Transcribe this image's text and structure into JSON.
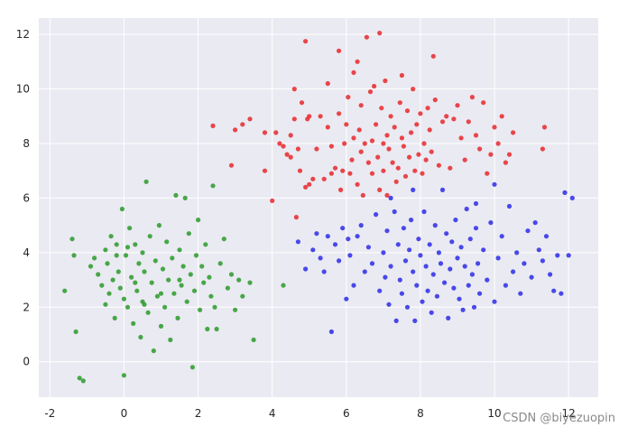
{
  "chart_data": {
    "type": "scatter",
    "xlim": [
      -2.3,
      12.8
    ],
    "ylim": [
      -1.3,
      12.6
    ],
    "xticks": [
      -2,
      0,
      2,
      4,
      6,
      8,
      10,
      12
    ],
    "yticks": [
      0,
      2,
      4,
      6,
      8,
      10,
      12
    ],
    "grid": true,
    "plot_background": "#EAEAF2",
    "series": [
      {
        "color": "#E8282B",
        "points": [
          [
            2.4,
            8.65
          ],
          [
            2.9,
            7.2
          ],
          [
            3.0,
            8.5
          ],
          [
            3.2,
            8.7
          ],
          [
            3.4,
            8.9
          ],
          [
            3.8,
            8.4
          ],
          [
            3.8,
            7.0
          ],
          [
            4.0,
            5.9
          ],
          [
            4.1,
            8.4
          ],
          [
            4.2,
            8.0
          ],
          [
            4.3,
            7.9
          ],
          [
            4.4,
            7.6
          ],
          [
            4.5,
            7.5
          ],
          [
            4.5,
            8.3
          ],
          [
            4.6,
            8.9
          ],
          [
            4.6,
            10.0
          ],
          [
            4.65,
            5.3
          ],
          [
            4.7,
            7.8
          ],
          [
            4.75,
            7.0
          ],
          [
            4.8,
            9.5
          ],
          [
            4.9,
            6.4
          ],
          [
            4.9,
            11.75
          ],
          [
            4.95,
            8.9
          ],
          [
            5.0,
            6.5
          ],
          [
            5.0,
            9.0
          ],
          [
            5.1,
            6.7
          ],
          [
            5.2,
            7.8
          ],
          [
            5.3,
            9.0
          ],
          [
            5.4,
            6.7
          ],
          [
            5.5,
            10.2
          ],
          [
            5.5,
            8.6
          ],
          [
            5.6,
            7.9
          ],
          [
            5.6,
            6.9
          ],
          [
            5.7,
            7.1
          ],
          [
            5.8,
            9.1
          ],
          [
            5.8,
            11.4
          ],
          [
            5.85,
            6.3
          ],
          [
            5.9,
            7.0
          ],
          [
            5.95,
            8.0
          ],
          [
            6.0,
            8.7
          ],
          [
            6.05,
            9.7
          ],
          [
            6.1,
            6.9
          ],
          [
            6.15,
            7.4
          ],
          [
            6.2,
            8.2
          ],
          [
            6.2,
            10.6
          ],
          [
            6.3,
            6.5
          ],
          [
            6.3,
            11.0
          ],
          [
            6.35,
            8.5
          ],
          [
            6.4,
            9.4
          ],
          [
            6.4,
            7.7
          ],
          [
            6.45,
            6.1
          ],
          [
            6.5,
            8.0
          ],
          [
            6.55,
            11.9
          ],
          [
            6.6,
            7.3
          ],
          [
            6.65,
            9.9
          ],
          [
            6.7,
            8.1
          ],
          [
            6.7,
            6.9
          ],
          [
            6.75,
            10.1
          ],
          [
            6.8,
            8.7
          ],
          [
            6.85,
            7.5
          ],
          [
            6.9,
            12.05
          ],
          [
            6.9,
            6.3
          ],
          [
            6.95,
            9.3
          ],
          [
            7.0,
            8.0
          ],
          [
            7.0,
            7.0
          ],
          [
            7.05,
            10.3
          ],
          [
            7.1,
            8.3
          ],
          [
            7.1,
            6.1
          ],
          [
            7.15,
            7.8
          ],
          [
            7.2,
            9.0
          ],
          [
            7.25,
            7.3
          ],
          [
            7.3,
            8.6
          ],
          [
            7.35,
            6.6
          ],
          [
            7.4,
            7.1
          ],
          [
            7.45,
            9.5
          ],
          [
            7.5,
            8.2
          ],
          [
            7.5,
            10.5
          ],
          [
            7.55,
            7.9
          ],
          [
            7.6,
            6.8
          ],
          [
            7.65,
            9.2
          ],
          [
            7.7,
            7.5
          ],
          [
            7.75,
            8.4
          ],
          [
            7.8,
            10.0
          ],
          [
            7.85,
            7.0
          ],
          [
            7.9,
            8.7
          ],
          [
            7.95,
            7.6
          ],
          [
            8.0,
            9.1
          ],
          [
            8.05,
            6.9
          ],
          [
            8.1,
            8.0
          ],
          [
            8.15,
            7.4
          ],
          [
            8.2,
            9.3
          ],
          [
            8.25,
            8.5
          ],
          [
            8.3,
            7.7
          ],
          [
            8.35,
            11.2
          ],
          [
            8.4,
            9.6
          ],
          [
            8.5,
            7.2
          ],
          [
            8.6,
            8.8
          ],
          [
            8.7,
            9.0
          ],
          [
            8.8,
            7.1
          ],
          [
            8.9,
            8.9
          ],
          [
            9.0,
            9.4
          ],
          [
            9.1,
            8.2
          ],
          [
            9.2,
            7.4
          ],
          [
            9.3,
            8.8
          ],
          [
            9.4,
            9.7
          ],
          [
            9.5,
            8.3
          ],
          [
            9.6,
            7.8
          ],
          [
            9.7,
            9.5
          ],
          [
            9.8,
            6.9
          ],
          [
            9.9,
            7.6
          ],
          [
            10.0,
            8.6
          ],
          [
            10.1,
            8.0
          ],
          [
            10.2,
            9.0
          ],
          [
            10.3,
            7.3
          ],
          [
            10.4,
            7.6
          ],
          [
            10.5,
            8.4
          ],
          [
            11.3,
            7.8
          ],
          [
            11.35,
            8.6
          ]
        ]
      },
      {
        "color": "#2B2BE8",
        "points": [
          [
            4.7,
            4.4
          ],
          [
            4.9,
            3.4
          ],
          [
            5.1,
            4.1
          ],
          [
            5.2,
            4.7
          ],
          [
            5.3,
            3.8
          ],
          [
            5.4,
            3.3
          ],
          [
            5.5,
            4.6
          ],
          [
            5.6,
            1.1
          ],
          [
            5.7,
            4.3
          ],
          [
            5.8,
            3.7
          ],
          [
            5.9,
            4.9
          ],
          [
            6.0,
            2.3
          ],
          [
            6.05,
            4.5
          ],
          [
            6.1,
            3.9
          ],
          [
            6.2,
            2.8
          ],
          [
            6.3,
            4.6
          ],
          [
            6.4,
            5.0
          ],
          [
            6.5,
            3.3
          ],
          [
            6.6,
            4.2
          ],
          [
            6.7,
            3.6
          ],
          [
            6.8,
            5.4
          ],
          [
            6.9,
            2.6
          ],
          [
            7.0,
            4.0
          ],
          [
            7.05,
            3.1
          ],
          [
            7.1,
            4.8
          ],
          [
            7.15,
            2.1
          ],
          [
            7.2,
            3.5
          ],
          [
            7.3,
            5.5
          ],
          [
            7.35,
            1.5
          ],
          [
            7.4,
            4.3
          ],
          [
            7.45,
            3.0
          ],
          [
            7.5,
            2.5
          ],
          [
            7.55,
            4.9
          ],
          [
            7.6,
            3.7
          ],
          [
            7.65,
            2.0
          ],
          [
            7.7,
            4.1
          ],
          [
            7.75,
            5.2
          ],
          [
            7.8,
            3.3
          ],
          [
            7.85,
            1.5
          ],
          [
            7.9,
            2.8
          ],
          [
            7.95,
            4.5
          ],
          [
            8.0,
            3.9
          ],
          [
            8.05,
            2.2
          ],
          [
            8.1,
            5.5
          ],
          [
            8.15,
            3.5
          ],
          [
            8.2,
            2.6
          ],
          [
            8.25,
            4.3
          ],
          [
            8.3,
            1.8
          ],
          [
            8.35,
            3.2
          ],
          [
            8.4,
            5.0
          ],
          [
            8.45,
            2.4
          ],
          [
            8.5,
            4.0
          ],
          [
            8.55,
            3.6
          ],
          [
            8.6,
            6.3
          ],
          [
            8.65,
            2.9
          ],
          [
            8.7,
            4.7
          ],
          [
            8.75,
            1.6
          ],
          [
            8.8,
            3.4
          ],
          [
            8.85,
            4.4
          ],
          [
            8.9,
            2.7
          ],
          [
            8.95,
            5.2
          ],
          [
            9.0,
            3.8
          ],
          [
            9.05,
            2.3
          ],
          [
            9.1,
            4.2
          ],
          [
            9.15,
            1.9
          ],
          [
            9.2,
            3.5
          ],
          [
            9.25,
            5.6
          ],
          [
            9.3,
            2.8
          ],
          [
            9.35,
            4.5
          ],
          [
            9.4,
            3.2
          ],
          [
            9.45,
            2.0
          ],
          [
            9.5,
            4.9
          ],
          [
            9.55,
            3.6
          ],
          [
            9.6,
            2.5
          ],
          [
            9.7,
            4.1
          ],
          [
            9.8,
            3.0
          ],
          [
            9.9,
            5.1
          ],
          [
            10.0,
            2.2
          ],
          [
            10.0,
            6.5
          ],
          [
            10.1,
            3.8
          ],
          [
            10.2,
            4.6
          ],
          [
            10.3,
            2.8
          ],
          [
            10.4,
            5.7
          ],
          [
            10.5,
            3.3
          ],
          [
            10.6,
            4.0
          ],
          [
            10.7,
            2.5
          ],
          [
            10.8,
            3.6
          ],
          [
            10.9,
            4.8
          ],
          [
            11.0,
            3.1
          ],
          [
            11.1,
            5.1
          ],
          [
            11.2,
            4.1
          ],
          [
            11.3,
            3.7
          ],
          [
            11.4,
            4.6
          ],
          [
            11.5,
            3.2
          ],
          [
            11.6,
            2.6
          ],
          [
            11.7,
            3.9
          ],
          [
            11.8,
            2.5
          ],
          [
            11.9,
            6.2
          ],
          [
            12.0,
            3.9
          ],
          [
            12.1,
            6.0
          ],
          [
            7.2,
            6.0
          ],
          [
            7.8,
            6.3
          ],
          [
            9.5,
            5.8
          ]
        ]
      },
      {
        "color": "#2A9A2A",
        "points": [
          [
            -1.6,
            2.6
          ],
          [
            -1.4,
            4.5
          ],
          [
            -1.35,
            3.9
          ],
          [
            -1.3,
            1.1
          ],
          [
            -1.2,
            -0.6
          ],
          [
            -1.1,
            -0.7
          ],
          [
            -0.9,
            3.5
          ],
          [
            -0.8,
            3.8
          ],
          [
            -0.7,
            3.2
          ],
          [
            -0.6,
            2.8
          ],
          [
            -0.5,
            4.1
          ],
          [
            -0.5,
            2.1
          ],
          [
            -0.45,
            3.6
          ],
          [
            -0.4,
            2.5
          ],
          [
            -0.35,
            4.6
          ],
          [
            -0.3,
            3.0
          ],
          [
            -0.25,
            1.6
          ],
          [
            -0.2,
            4.3
          ],
          [
            -0.15,
            3.3
          ],
          [
            -0.1,
            2.7
          ],
          [
            -0.05,
            5.6
          ],
          [
            0.0,
            2.3
          ],
          [
            0.0,
            -0.5
          ],
          [
            0.05,
            3.9
          ],
          [
            0.1,
            2.0
          ],
          [
            0.15,
            4.9
          ],
          [
            0.2,
            3.1
          ],
          [
            0.25,
            1.4
          ],
          [
            0.3,
            4.3
          ],
          [
            0.35,
            2.6
          ],
          [
            0.4,
            3.6
          ],
          [
            0.45,
            0.9
          ],
          [
            0.5,
            4.0
          ],
          [
            0.5,
            2.2
          ],
          [
            0.55,
            3.3
          ],
          [
            0.6,
            6.6
          ],
          [
            0.65,
            1.8
          ],
          [
            0.7,
            4.6
          ],
          [
            0.75,
            2.9
          ],
          [
            0.8,
            0.4
          ],
          [
            0.85,
            3.7
          ],
          [
            0.9,
            2.4
          ],
          [
            0.95,
            5.0
          ],
          [
            1.0,
            1.3
          ],
          [
            1.05,
            3.4
          ],
          [
            1.1,
            2.0
          ],
          [
            1.15,
            4.4
          ],
          [
            1.2,
            3.0
          ],
          [
            1.25,
            0.8
          ],
          [
            1.3,
            3.8
          ],
          [
            1.35,
            2.5
          ],
          [
            1.4,
            6.1
          ],
          [
            1.45,
            1.6
          ],
          [
            1.5,
            4.1
          ],
          [
            1.55,
            2.8
          ],
          [
            1.6,
            3.5
          ],
          [
            1.65,
            6.0
          ],
          [
            1.7,
            2.2
          ],
          [
            1.75,
            4.7
          ],
          [
            1.8,
            3.2
          ],
          [
            1.85,
            -0.2
          ],
          [
            1.9,
            2.6
          ],
          [
            1.95,
            3.9
          ],
          [
            2.0,
            5.2
          ],
          [
            2.05,
            1.9
          ],
          [
            2.1,
            3.5
          ],
          [
            2.15,
            2.9
          ],
          [
            2.2,
            4.3
          ],
          [
            2.25,
            1.2
          ],
          [
            2.3,
            3.1
          ],
          [
            2.35,
            2.4
          ],
          [
            2.4,
            6.45
          ],
          [
            2.45,
            2.0
          ],
          [
            2.5,
            1.2
          ],
          [
            2.6,
            3.6
          ],
          [
            2.7,
            4.5
          ],
          [
            2.8,
            2.7
          ],
          [
            2.9,
            3.2
          ],
          [
            3.0,
            1.9
          ],
          [
            3.1,
            3.0
          ],
          [
            3.2,
            2.4
          ],
          [
            3.4,
            2.9
          ],
          [
            3.5,
            0.8
          ],
          [
            4.3,
            2.8
          ],
          [
            0.1,
            4.2
          ],
          [
            0.55,
            2.1
          ],
          [
            1.0,
            2.5
          ],
          [
            1.5,
            3.0
          ],
          [
            0.3,
            2.9
          ],
          [
            -0.2,
            3.9
          ]
        ]
      }
    ]
  },
  "watermark": "CSDN @biyezuopin"
}
